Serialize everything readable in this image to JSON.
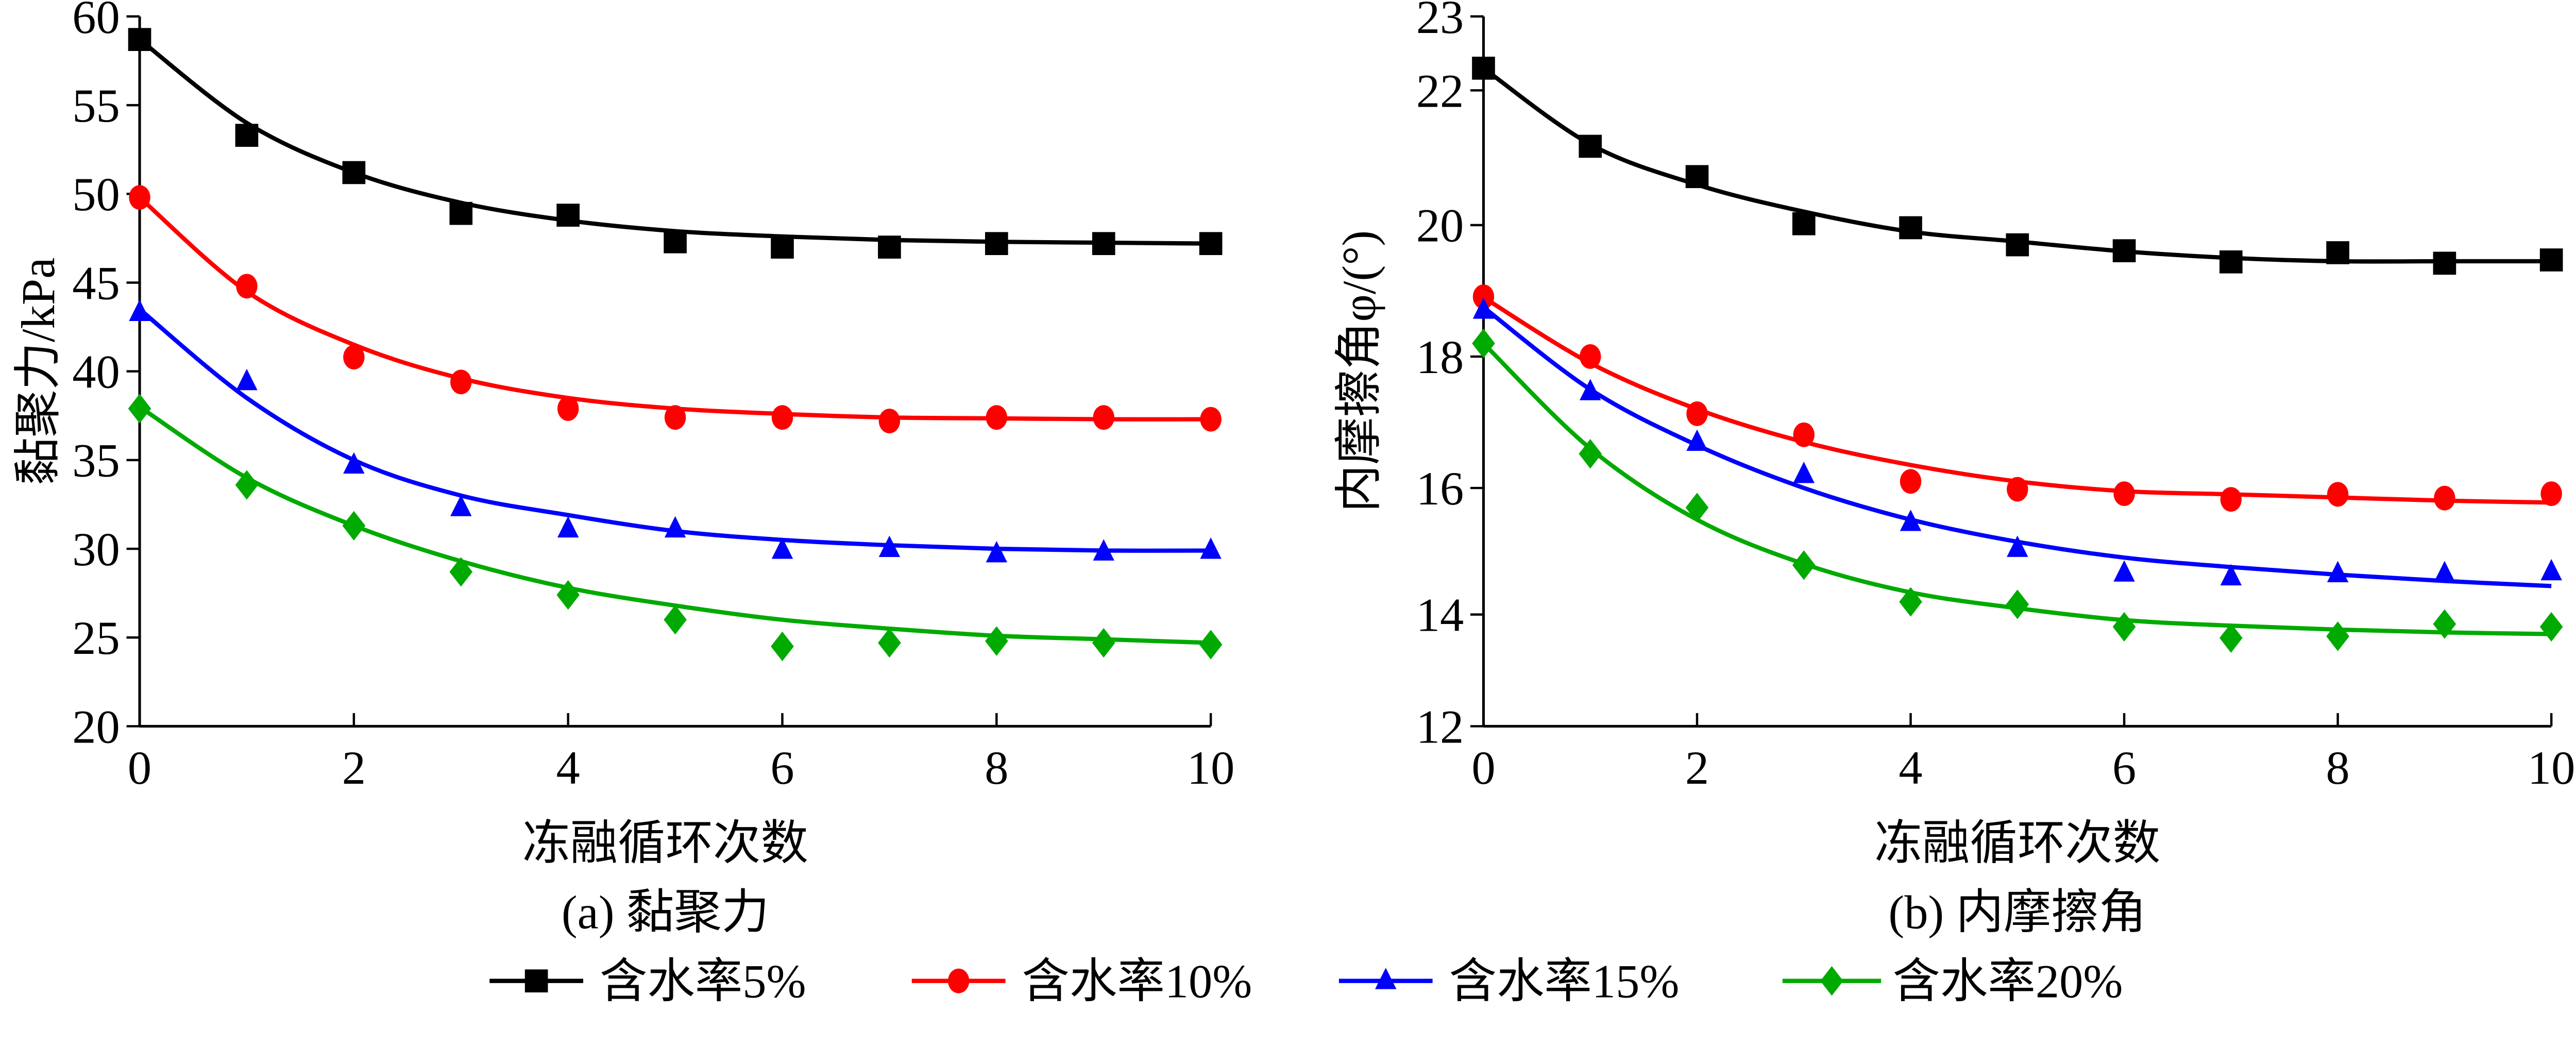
{
  "chart_data": [
    {
      "type": "scatter",
      "caption": "(a)  黏聚力",
      "xlabel": "冻融循环次数",
      "ylabel": "黏聚力/kPa",
      "xlim": [
        0,
        10
      ],
      "ylim": [
        20,
        60
      ],
      "xticks": [
        0,
        2,
        4,
        6,
        8,
        10
      ],
      "yticks": [
        20,
        25,
        30,
        35,
        40,
        45,
        50,
        55,
        60
      ],
      "grid": false,
      "x": [
        0,
        1,
        2,
        3,
        4,
        5,
        6,
        7,
        8,
        9,
        10
      ],
      "series": [
        {
          "name": "含水率5%",
          "color": "#000000",
          "marker": "square",
          "values": [
            58.7,
            53.3,
            51.2,
            48.9,
            48.8,
            47.3,
            47.0,
            47.0,
            47.2,
            47.2,
            47.2
          ],
          "fit": [
            58.7,
            54.0,
            51.2,
            49.5,
            48.5,
            47.9,
            47.6,
            47.4,
            47.3,
            47.25,
            47.2
          ]
        },
        {
          "name": "含水率10%",
          "color": "#ff0000",
          "marker": "circle",
          "values": [
            49.8,
            44.8,
            40.8,
            39.4,
            37.9,
            37.4,
            37.4,
            37.2,
            37.4,
            37.4,
            37.3
          ],
          "fit": [
            49.8,
            44.5,
            41.5,
            39.6,
            38.5,
            37.9,
            37.6,
            37.4,
            37.35,
            37.3,
            37.3
          ]
        },
        {
          "name": "含水率15%",
          "color": "#0000ff",
          "marker": "triangle",
          "values": [
            43.3,
            39.4,
            34.7,
            32.3,
            31.1,
            31.1,
            29.9,
            30.0,
            29.7,
            29.8,
            29.9
          ],
          "fit": [
            43.5,
            38.5,
            35.0,
            33.0,
            31.9,
            31.0,
            30.5,
            30.2,
            30.0,
            29.9,
            29.9
          ]
        },
        {
          "name": "含水率20%",
          "color": "#00aa00",
          "marker": "diamond",
          "values": [
            37.9,
            33.6,
            31.3,
            28.7,
            27.4,
            26.0,
            24.5,
            24.7,
            24.8,
            24.7,
            24.6
          ],
          "fit": [
            38.0,
            34.0,
            31.3,
            29.3,
            27.8,
            26.8,
            26.0,
            25.5,
            25.1,
            24.9,
            24.7
          ]
        }
      ]
    },
    {
      "type": "scatter",
      "caption": "(b)  内摩擦角",
      "xlabel": "冻融循环次数",
      "ylabel": "内摩擦角φ/(°)",
      "xlim": [
        0,
        10
      ],
      "ylim": [
        12,
        23
      ],
      "xticks": [
        0,
        2,
        4,
        6,
        8,
        10
      ],
      "yticks": [
        12,
        14,
        16,
        18,
        20,
        22,
        23
      ],
      "grid": false,
      "x": [
        0,
        1,
        2,
        3,
        4,
        5,
        6,
        7,
        8,
        9,
        10
      ],
      "series": [
        {
          "name": "含水率5%",
          "color": "#000000",
          "marker": "square",
          "values": [
            22.3,
            21.17,
            20.72,
            20.02,
            19.96,
            19.7,
            19.61,
            19.44,
            19.58,
            19.42,
            19.47
          ],
          "fit": [
            22.3,
            21.2,
            20.6,
            20.2,
            19.9,
            19.75,
            19.6,
            19.5,
            19.45,
            19.45,
            19.45
          ]
        },
        {
          "name": "含水率10%",
          "color": "#ff0000",
          "marker": "circle",
          "values": [
            18.91,
            18.0,
            17.13,
            16.81,
            16.1,
            15.98,
            15.91,
            15.82,
            15.9,
            15.84,
            15.91
          ],
          "fit": [
            18.9,
            17.9,
            17.2,
            16.7,
            16.35,
            16.1,
            15.95,
            15.9,
            15.85,
            15.8,
            15.77
          ]
        },
        {
          "name": "含水率15%",
          "color": "#0000ff",
          "marker": "triangle",
          "values": [
            18.7,
            17.46,
            16.69,
            16.2,
            15.45,
            15.04,
            14.65,
            14.59,
            14.64,
            14.64,
            14.67
          ],
          "fit": [
            18.75,
            17.5,
            16.65,
            16.0,
            15.5,
            15.15,
            14.9,
            14.75,
            14.63,
            14.53,
            14.45
          ]
        },
        {
          "name": "含水率20%",
          "color": "#00aa00",
          "marker": "diamond",
          "values": [
            18.2,
            16.52,
            15.69,
            14.78,
            14.2,
            14.16,
            13.78,
            13.58,
            13.61,
            13.83,
            13.78
          ],
          "fit": [
            18.2,
            16.6,
            15.5,
            14.8,
            14.35,
            14.1,
            13.9,
            13.8,
            13.73,
            13.68,
            13.65
          ]
        }
      ]
    }
  ],
  "legend": {
    "placement": "bottom",
    "items": [
      "含水率5%",
      "含水率10%",
      "含水率15%",
      "含水率20%"
    ]
  }
}
